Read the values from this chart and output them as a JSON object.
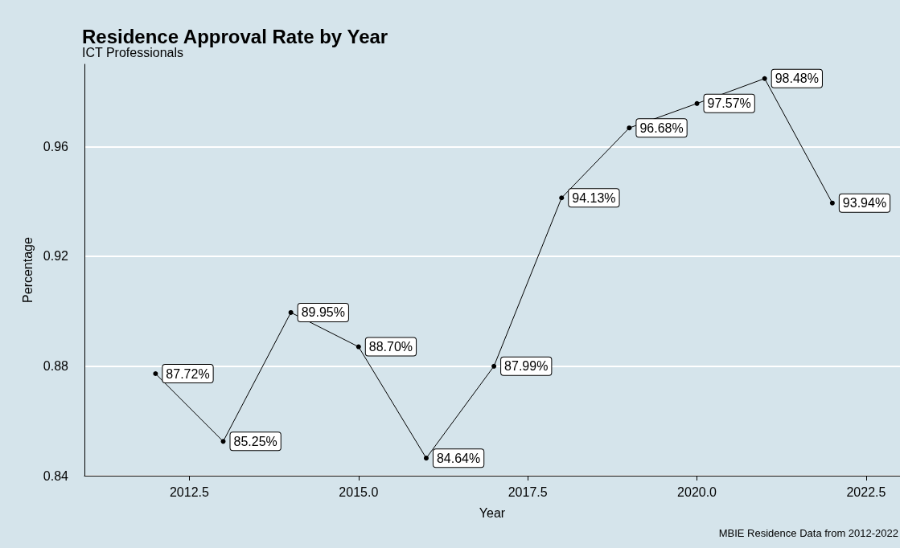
{
  "chart_data": {
    "type": "line",
    "title": "Residence Approval Rate by Year",
    "subtitle": "ICT Professionals",
    "xlabel": "Year",
    "ylabel": "Percentage",
    "annotations": [
      "MBIE Residence Data from 2012-2022"
    ],
    "x": [
      2012,
      2013,
      2014,
      2015,
      2016,
      2017,
      2018,
      2019,
      2020,
      2021,
      2022
    ],
    "series": [
      {
        "color": "#000000",
        "values": [
          0.8772,
          0.8525,
          0.8995,
          0.887,
          0.8464,
          0.8799,
          0.9413,
          0.9668,
          0.9757,
          0.9848,
          0.9394
        ],
        "value_labels": [
          "87.72%",
          "85.25%",
          "89.95%",
          "88.70%",
          "84.64%",
          "87.99%",
          "94.13%",
          "96.68%",
          "97.57%",
          "98.48%",
          "93.94%"
        ]
      }
    ],
    "xlim": [
      2010.95,
      2023.0
    ],
    "xticks": [
      {
        "value": 2012.5,
        "label": "2012.5"
      },
      {
        "value": 2015,
        "label": "2015.0"
      },
      {
        "value": 2017.5,
        "label": "2017.5"
      },
      {
        "value": 2020,
        "label": "2020.0"
      },
      {
        "value": 2022.5,
        "label": "2022.5"
      }
    ],
    "ylim": [
      0.84,
      0.99
    ],
    "yticks": [
      0.84,
      0.88,
      0.92,
      0.96
    ],
    "grid": "y",
    "marker": "circle",
    "line_style": "solid"
  }
}
